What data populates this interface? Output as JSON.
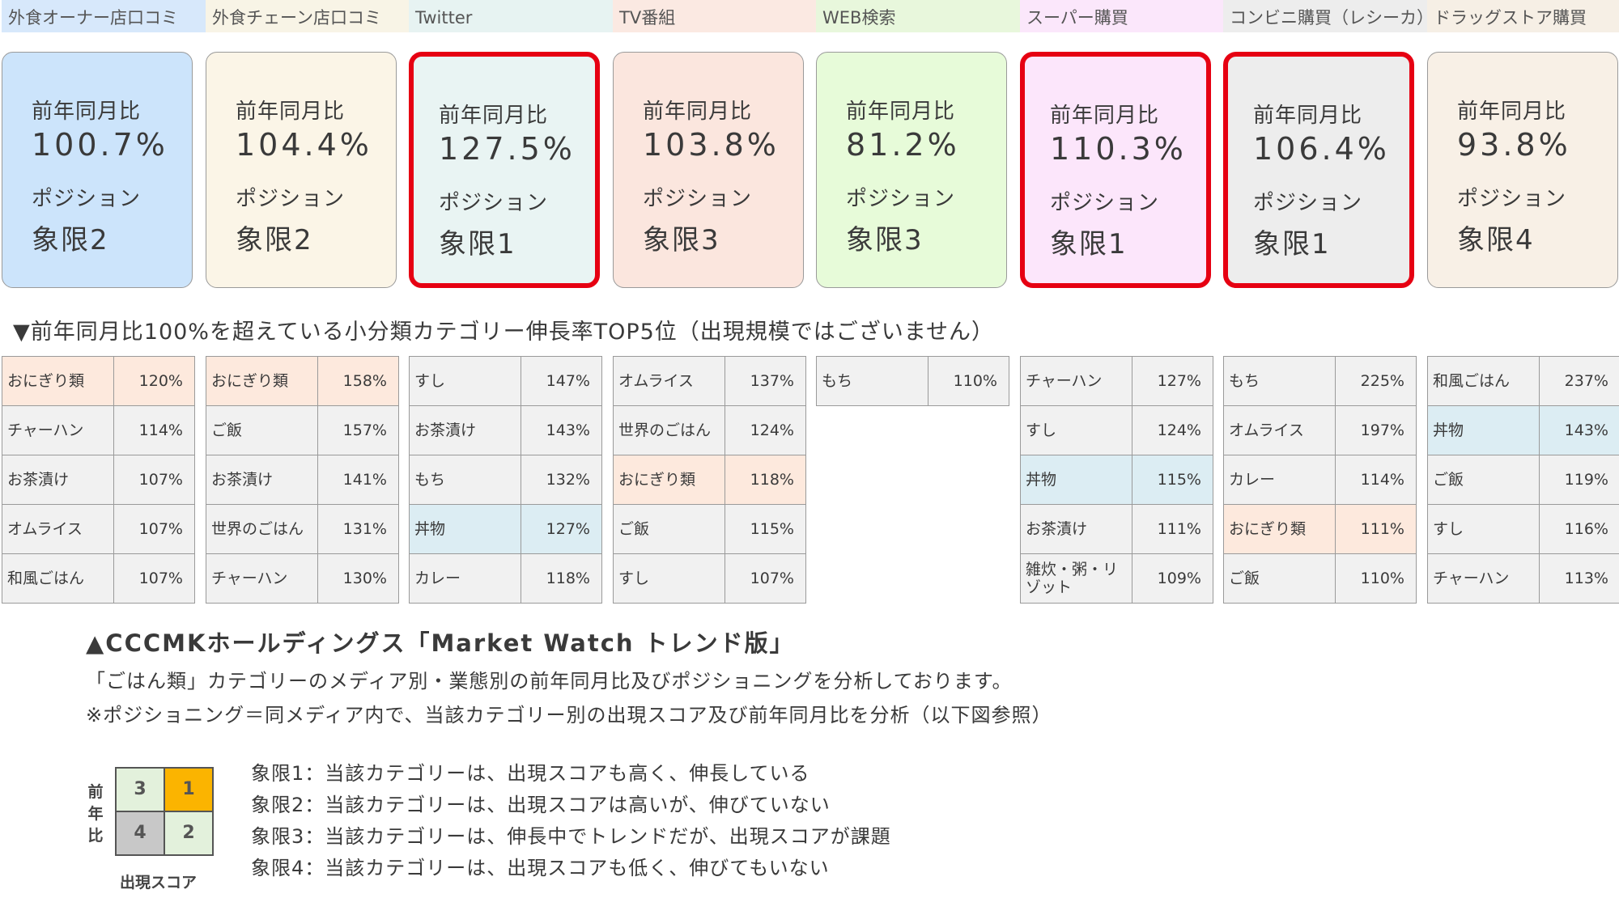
{
  "media": [
    {
      "header": "外食オーナー店口コミ",
      "header_bg": "#d7e8fb",
      "card_bg": "#cce4fb",
      "highlight": false,
      "yoy_label": "前年同月比",
      "yoy": "100.7%",
      "pos_label": "ポジション",
      "position": "象限2"
    },
    {
      "header": "外食チェーン店口コミ",
      "header_bg": "#f8f4e6",
      "card_bg": "#fbf5e7",
      "highlight": false,
      "yoy_label": "前年同月比",
      "yoy": "104.4%",
      "pos_label": "ポジション",
      "position": "象限2"
    },
    {
      "header": "Twitter",
      "header_bg": "#e7f3f2",
      "card_bg": "#e9f4f3",
      "highlight": true,
      "yoy_label": "前年同月比",
      "yoy": "127.5%",
      "pos_label": "ポジション",
      "position": "象限1"
    },
    {
      "header": "TV番組",
      "header_bg": "#fbe9e2",
      "card_bg": "#fbe6de",
      "highlight": false,
      "yoy_label": "前年同月比",
      "yoy": "103.8%",
      "pos_label": "ポジション",
      "position": "象限3"
    },
    {
      "header": "WEB検索",
      "header_bg": "#e8f7dc",
      "card_bg": "#e7fbd9",
      "highlight": false,
      "yoy_label": "前年同月比",
      "yoy": "81.2%",
      "pos_label": "ポジション",
      "position": "象限3"
    },
    {
      "header": "スーパー購買",
      "header_bg": "#fbe7fb",
      "card_bg": "#fce6fb",
      "highlight": true,
      "yoy_label": "前年同月比",
      "yoy": "110.3%",
      "pos_label": "ポジション",
      "position": "象限1"
    },
    {
      "header": "コンビニ購買（レシーカ）",
      "header_bg": "#ededed",
      "card_bg": "#ededed",
      "highlight": true,
      "yoy_label": "前年同月比",
      "yoy": "106.4%",
      "pos_label": "ポジション",
      "position": "象限1"
    },
    {
      "header": "ドラッグストア購買",
      "header_bg": "#f6efe5",
      "card_bg": "#f8f0e6",
      "highlight": false,
      "yoy_label": "前年同月比",
      "yoy": "93.8%",
      "pos_label": "ポジション",
      "position": "象限4"
    }
  ],
  "section_title": "▼前年同月比100%を超えている小分類カテゴリー伸長率TOP5位（出現規模ではございません）",
  "rankings": [
    [
      {
        "name": "おにぎり類",
        "value": "120%",
        "bg": "#fde9dd"
      },
      {
        "name": "チャーハン",
        "value": "114%",
        "bg": "#f1f1f1"
      },
      {
        "name": "お茶漬け",
        "value": "107%",
        "bg": "#f1f1f1"
      },
      {
        "name": "オムライス",
        "value": "107%",
        "bg": "#f1f1f1"
      },
      {
        "name": "和風ごはん",
        "value": "107%",
        "bg": "#f1f1f1"
      }
    ],
    [
      {
        "name": "おにぎり類",
        "value": "158%",
        "bg": "#fde9dd"
      },
      {
        "name": "ご飯",
        "value": "157%",
        "bg": "#f1f1f1"
      },
      {
        "name": "お茶漬け",
        "value": "141%",
        "bg": "#f1f1f1"
      },
      {
        "name": "世界のごはん",
        "value": "131%",
        "bg": "#f1f1f1"
      },
      {
        "name": "チャーハン",
        "value": "130%",
        "bg": "#f1f1f1"
      }
    ],
    [
      {
        "name": "すし",
        "value": "147%",
        "bg": "#f1f1f1"
      },
      {
        "name": "お茶漬け",
        "value": "143%",
        "bg": "#f1f1f1"
      },
      {
        "name": "もち",
        "value": "132%",
        "bg": "#f1f1f1"
      },
      {
        "name": "丼物",
        "value": "127%",
        "bg": "#dcedf3"
      },
      {
        "name": "カレー",
        "value": "118%",
        "bg": "#f1f1f1"
      }
    ],
    [
      {
        "name": "オムライス",
        "value": "137%",
        "bg": "#f1f1f1"
      },
      {
        "name": "世界のごはん",
        "value": "124%",
        "bg": "#f1f1f1"
      },
      {
        "name": "おにぎり類",
        "value": "118%",
        "bg": "#fde9dd"
      },
      {
        "name": "ご飯",
        "value": "115%",
        "bg": "#f1f1f1"
      },
      {
        "name": "すし",
        "value": "107%",
        "bg": "#f1f1f1"
      }
    ],
    [
      {
        "name": "もち",
        "value": "110%",
        "bg": "#f1f1f1"
      }
    ],
    [
      {
        "name": "チャーハン",
        "value": "127%",
        "bg": "#f1f1f1"
      },
      {
        "name": "すし",
        "value": "124%",
        "bg": "#f1f1f1"
      },
      {
        "name": "丼物",
        "value": "115%",
        "bg": "#dcedf3"
      },
      {
        "name": "お茶漬け",
        "value": "111%",
        "bg": "#f1f1f1"
      },
      {
        "name": "雑炊・粥・リゾット",
        "value": "109%",
        "bg": "#f1f1f1"
      }
    ],
    [
      {
        "name": "もち",
        "value": "225%",
        "bg": "#f1f1f1"
      },
      {
        "name": "オムライス",
        "value": "197%",
        "bg": "#f1f1f1"
      },
      {
        "name": "カレー",
        "value": "114%",
        "bg": "#f1f1f1"
      },
      {
        "name": "おにぎり類",
        "value": "111%",
        "bg": "#fde9dd"
      },
      {
        "name": "ご飯",
        "value": "110%",
        "bg": "#f1f1f1"
      }
    ],
    [
      {
        "name": "和風ごはん",
        "value": "237%",
        "bg": "#f1f1f1"
      },
      {
        "name": "丼物",
        "value": "143%",
        "bg": "#dcedf3"
      },
      {
        "name": "ご飯",
        "value": "119%",
        "bg": "#f1f1f1"
      },
      {
        "name": "すし",
        "value": "116%",
        "bg": "#f1f1f1"
      },
      {
        "name": "チャーハン",
        "value": "113%",
        "bg": "#f1f1f1"
      }
    ]
  ],
  "source": "▲CCCMKホールディングス「Market Watch トレンド版」",
  "desc1": "「ごはん類」カテゴリーのメディア別・業態別の前年同月比及びポジショニングを分析しております。",
  "desc2": "※ポジショニング＝同メディア内で、当該カテゴリー別の出現スコア及び前年同月比を分析（以下図参照）",
  "quadrant": {
    "y_label": "前年比",
    "x_label": "出現スコア",
    "cells": [
      {
        "label": "3",
        "color": "#e3f1dc"
      },
      {
        "label": "1",
        "color": "#fbb400"
      },
      {
        "label": "4",
        "color": "#c8c8c8"
      },
      {
        "label": "2",
        "color": "#e3f1dc"
      }
    ],
    "descriptions": [
      "象限1：当該カテゴリーは、出現スコアも高く、伸長している",
      "象限2：当該カテゴリーは、出現スコアは高いが、伸びていない",
      "象限3：当該カテゴリーは、伸長中でトレンドだが、出現スコアが課題",
      "象限4：当該カテゴリーは、出現スコアも低く、伸びてもいない"
    ]
  }
}
